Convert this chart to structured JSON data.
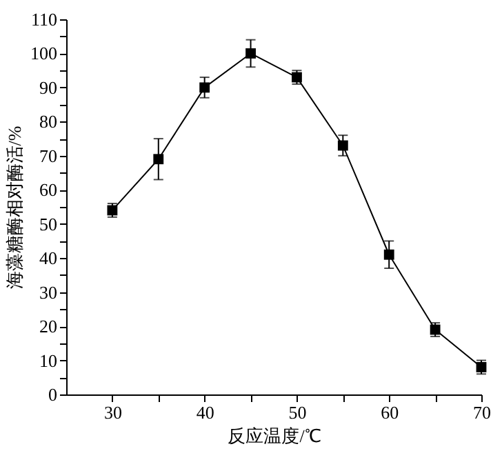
{
  "chart_data": {
    "type": "line",
    "xlabel": "反应温度/℃",
    "ylabel": "海藻糖酶相对酶活/%",
    "x": [
      30,
      35,
      40,
      45,
      50,
      55,
      60,
      65,
      70
    ],
    "series": [
      {
        "color": "#000000",
        "values": [
          54,
          69,
          90,
          100,
          93,
          73,
          41,
          19,
          8
        ],
        "errors": [
          2,
          6,
          3,
          4,
          2,
          3,
          4,
          2,
          2
        ]
      }
    ],
    "xlim": [
      25,
      70
    ],
    "xticks": [
      30,
      {
        "value": 35,
        "label": null
      },
      40,
      {
        "value": 45,
        "label": null
      },
      50,
      {
        "value": 55,
        "label": null
      },
      60,
      {
        "value": 65,
        "label": null
      },
      70
    ],
    "ylim": [
      0,
      110
    ],
    "yticks": [
      0,
      {
        "value": 5,
        "label": null
      },
      10,
      {
        "value": 15,
        "label": null
      },
      20,
      {
        "value": 25,
        "label": null
      },
      30,
      {
        "value": 35,
        "label": null
      },
      40,
      {
        "value": 45,
        "label": null
      },
      50,
      {
        "value": 55,
        "label": null
      },
      60,
      {
        "value": 65,
        "label": null
      },
      70,
      {
        "value": 75,
        "label": null
      },
      80,
      {
        "value": 85,
        "label": null
      },
      90,
      {
        "value": 95,
        "label": null
      },
      100,
      {
        "value": 105,
        "label": null
      },
      110
    ],
    "marker": "square",
    "grid": false
  }
}
